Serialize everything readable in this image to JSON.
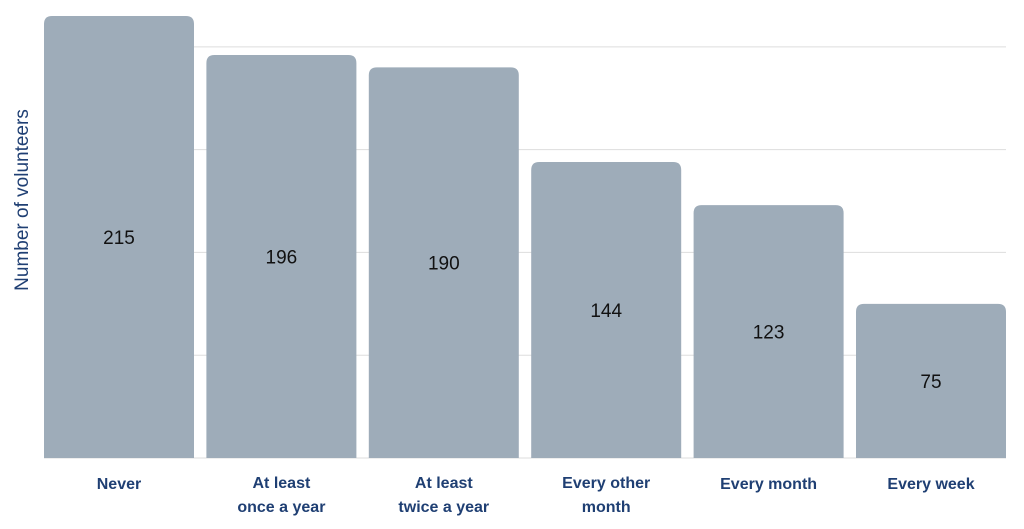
{
  "chart_data": {
    "type": "bar",
    "categories": [
      [
        "Never"
      ],
      [
        "At least",
        "once a year"
      ],
      [
        "At least",
        "twice a year"
      ],
      [
        "Every other",
        "month"
      ],
      [
        "Every month"
      ],
      [
        "Every week"
      ]
    ],
    "values": [
      215,
      196,
      190,
      144,
      123,
      75
    ],
    "ylabel": "Number of volunteers",
    "ylim": [
      0,
      215
    ],
    "grid": true,
    "legend": "none",
    "bar_color": "#9eacb9",
    "grid_color": "#dddddd",
    "label_color": "#1f3f73"
  }
}
